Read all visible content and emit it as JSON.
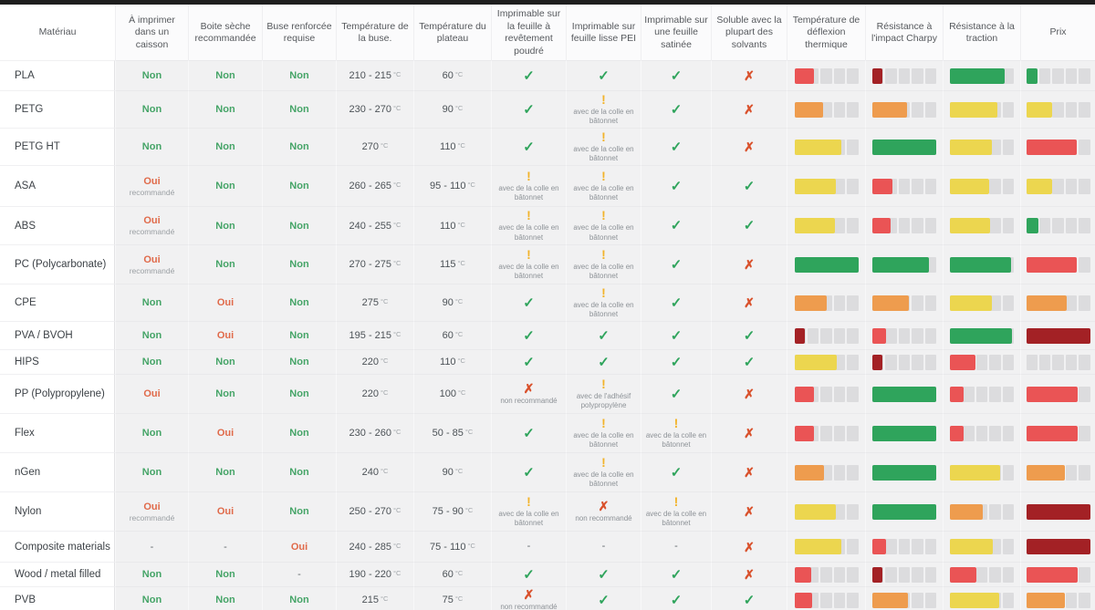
{
  "colors": {
    "bar_green": "#2fa45c",
    "bar_yellow": "#ecd64f",
    "bar_orange": "#ee9c4e",
    "bar_red": "#ea5455",
    "bar_darkred": "#a32125",
    "bar_empty": "#dcdcde",
    "check_icon": "#2fa45c",
    "cross_icon": "#d9512c",
    "warning_icon": "#f2b32a",
    "text_no": "#45a467",
    "text_yes": "#e06a4a",
    "topbar": "#1e1e1e"
  },
  "table": {
    "units": {
      "celsius": "°C"
    },
    "columns": [
      "Matériau",
      "À imprimer dans un caisson",
      "Boite sèche recommandée",
      "Buse renforcée requise",
      "Température de la buse.",
      "Température du plateau",
      "Imprimable sur la feuille à revêtement poudré",
      "Imprimable sur feuille lisse PEI",
      "Imprimable sur une feuille satinée",
      "Soluble avec la plupart des solvants",
      "Température de déflexion thermique",
      "Résistance à l'impact Charpy",
      "Résistance à la traction",
      "Prix"
    ],
    "rows": [
      {
        "name": "PLA",
        "enclosure": {
          "t": "Non",
          "c": "no"
        },
        "drybox": {
          "t": "Non",
          "c": "no"
        },
        "hard_nozzle": {
          "t": "Non",
          "c": "no"
        },
        "nozzle_temp": "210 - 215",
        "bed_temp": "60",
        "powder_sheet": {
          "icon": "check"
        },
        "pei_sheet": {
          "icon": "check"
        },
        "satin_sheet": {
          "icon": "check"
        },
        "soluble": {
          "icon": "cross"
        },
        "hdt": {
          "color": "red",
          "pct": 30
        },
        "charpy": {
          "color": "darkred",
          "pct": 15
        },
        "tensile": {
          "color": "green",
          "pct": 85
        },
        "price": {
          "color": "green",
          "pct": 18
        }
      },
      {
        "name": "PETG",
        "enclosure": {
          "t": "Non",
          "c": "no"
        },
        "drybox": {
          "t": "Non",
          "c": "no"
        },
        "hard_nozzle": {
          "t": "Non",
          "c": "no"
        },
        "nozzle_temp": "230 - 270",
        "bed_temp": "90",
        "powder_sheet": {
          "icon": "check"
        },
        "pei_sheet": {
          "icon": "warning",
          "note": "avec de la colle en bâtonnet"
        },
        "satin_sheet": {
          "icon": "check"
        },
        "soluble": {
          "icon": "cross"
        },
        "hdt": {
          "color": "orange",
          "pct": 45
        },
        "charpy": {
          "color": "orange",
          "pct": 54
        },
        "tensile": {
          "color": "yellow",
          "pct": 74
        },
        "price": {
          "color": "yellow",
          "pct": 40
        }
      },
      {
        "name": "PETG HT",
        "enclosure": {
          "t": "Non",
          "c": "no"
        },
        "drybox": {
          "t": "Non",
          "c": "no"
        },
        "hard_nozzle": {
          "t": "Non",
          "c": "no"
        },
        "nozzle_temp": "270",
        "bed_temp": "110",
        "powder_sheet": {
          "icon": "check"
        },
        "pei_sheet": {
          "icon": "warning",
          "note": "avec de la colle en bâtonnet"
        },
        "satin_sheet": {
          "icon": "check"
        },
        "soluble": {
          "icon": "cross"
        },
        "hdt": {
          "color": "yellow",
          "pct": 74
        },
        "charpy": {
          "color": "green",
          "pct": 100
        },
        "tensile": {
          "color": "yellow",
          "pct": 66
        },
        "price": {
          "color": "red",
          "pct": 79
        }
      },
      {
        "name": "ASA",
        "enclosure": {
          "t": "Oui",
          "c": "yes",
          "sub": "recommandé"
        },
        "drybox": {
          "t": "Non",
          "c": "no"
        },
        "hard_nozzle": {
          "t": "Non",
          "c": "no"
        },
        "nozzle_temp": "260 - 265",
        "bed_temp": "95 - 110",
        "powder_sheet": {
          "icon": "warning",
          "note": "avec de la colle en bâtonnet"
        },
        "pei_sheet": {
          "icon": "warning",
          "note": "avec de la colle en bâtonnet"
        },
        "satin_sheet": {
          "icon": "check"
        },
        "soluble": {
          "icon": "check"
        },
        "hdt": {
          "color": "yellow",
          "pct": 65
        },
        "charpy": {
          "color": "red",
          "pct": 31
        },
        "tensile": {
          "color": "yellow",
          "pct": 62
        },
        "price": {
          "color": "yellow",
          "pct": 40
        }
      },
      {
        "name": "ABS",
        "enclosure": {
          "t": "Oui",
          "c": "yes",
          "sub": "recommandé"
        },
        "drybox": {
          "t": "Non",
          "c": "no"
        },
        "hard_nozzle": {
          "t": "Non",
          "c": "no"
        },
        "nozzle_temp": "240 - 255",
        "bed_temp": "110",
        "powder_sheet": {
          "icon": "warning",
          "note": "avec de la colle en bâtonnet"
        },
        "pei_sheet": {
          "icon": "warning",
          "note": "avec de la colle en bâtonnet"
        },
        "satin_sheet": {
          "icon": "check"
        },
        "soluble": {
          "icon": "check"
        },
        "hdt": {
          "color": "yellow",
          "pct": 64
        },
        "charpy": {
          "color": "red",
          "pct": 29
        },
        "tensile": {
          "color": "yellow",
          "pct": 63
        },
        "price": {
          "color": "green",
          "pct": 19
        }
      },
      {
        "name": "PC (Polycarbonate)",
        "enclosure": {
          "t": "Oui",
          "c": "yes",
          "sub": "recommandé"
        },
        "drybox": {
          "t": "Non",
          "c": "no"
        },
        "hard_nozzle": {
          "t": "Non",
          "c": "no"
        },
        "nozzle_temp": "270 - 275",
        "bed_temp": "115",
        "powder_sheet": {
          "icon": "warning",
          "note": "avec de la colle en bâtonnet"
        },
        "pei_sheet": {
          "icon": "warning",
          "note": "avec de la colle en bâtonnet"
        },
        "satin_sheet": {
          "icon": "check"
        },
        "soluble": {
          "icon": "cross"
        },
        "hdt": {
          "color": "green",
          "pct": 100
        },
        "charpy": {
          "color": "green",
          "pct": 88
        },
        "tensile": {
          "color": "green",
          "pct": 95
        },
        "price": {
          "color": "red",
          "pct": 79
        }
      },
      {
        "name": "CPE",
        "enclosure": {
          "t": "Non",
          "c": "no"
        },
        "drybox": {
          "t": "Oui",
          "c": "yes"
        },
        "hard_nozzle": {
          "t": "Non",
          "c": "no"
        },
        "nozzle_temp": "275",
        "bed_temp": "90",
        "powder_sheet": {
          "icon": "check"
        },
        "pei_sheet": {
          "icon": "warning",
          "note": "avec de la colle en bâtonnet"
        },
        "satin_sheet": {
          "icon": "check"
        },
        "soluble": {
          "icon": "cross"
        },
        "hdt": {
          "color": "orange",
          "pct": 51
        },
        "charpy": {
          "color": "orange",
          "pct": 57
        },
        "tensile": {
          "color": "yellow",
          "pct": 65
        },
        "price": {
          "color": "orange",
          "pct": 63
        }
      },
      {
        "name": "PVA / BVOH",
        "enclosure": {
          "t": "Non",
          "c": "no"
        },
        "drybox": {
          "t": "Oui",
          "c": "yes"
        },
        "hard_nozzle": {
          "t": "Non",
          "c": "no"
        },
        "nozzle_temp": "195 - 215",
        "bed_temp": "60",
        "powder_sheet": {
          "icon": "check"
        },
        "pei_sheet": {
          "icon": "check"
        },
        "satin_sheet": {
          "icon": "check"
        },
        "soluble": {
          "icon": "check"
        },
        "hdt": {
          "color": "darkred",
          "pct": 17
        },
        "charpy": {
          "color": "red",
          "pct": 21
        },
        "tensile": {
          "color": "green",
          "pct": 97
        },
        "price": {
          "color": "darkred",
          "pct": 100
        }
      },
      {
        "name": "HIPS",
        "enclosure": {
          "t": "Non",
          "c": "no"
        },
        "drybox": {
          "t": "Non",
          "c": "no"
        },
        "hard_nozzle": {
          "t": "Non",
          "c": "no"
        },
        "nozzle_temp": "220",
        "bed_temp": "110",
        "powder_sheet": {
          "icon": "check"
        },
        "pei_sheet": {
          "icon": "check"
        },
        "satin_sheet": {
          "icon": "check"
        },
        "soluble": {
          "icon": "check"
        },
        "hdt": {
          "color": "yellow",
          "pct": 67
        },
        "charpy": {
          "color": "darkred",
          "pct": 16
        },
        "tensile": {
          "color": "red",
          "pct": 40
        },
        "price": {
          "color": "none",
          "pct": 0
        }
      },
      {
        "name": "PP (Polypropylene)",
        "enclosure": {
          "t": "Oui",
          "c": "yes"
        },
        "drybox": {
          "t": "Non",
          "c": "no"
        },
        "hard_nozzle": {
          "t": "Non",
          "c": "no"
        },
        "nozzle_temp": "220",
        "bed_temp": "100",
        "powder_sheet": {
          "icon": "cross",
          "note": "non recommandé"
        },
        "pei_sheet": {
          "icon": "warning",
          "note": "avec de l'adhésif polypropylène"
        },
        "satin_sheet": {
          "icon": "check"
        },
        "soluble": {
          "icon": "cross"
        },
        "hdt": {
          "color": "red",
          "pct": 30
        },
        "charpy": {
          "color": "green",
          "pct": 100
        },
        "tensile": {
          "color": "red",
          "pct": 21
        },
        "price": {
          "color": "red",
          "pct": 80
        }
      },
      {
        "name": "Flex",
        "enclosure": {
          "t": "Non",
          "c": "no"
        },
        "drybox": {
          "t": "Oui",
          "c": "yes"
        },
        "hard_nozzle": {
          "t": "Non",
          "c": "no"
        },
        "nozzle_temp": "230 - 260",
        "bed_temp": "50 - 85",
        "powder_sheet": {
          "icon": "check"
        },
        "pei_sheet": {
          "icon": "warning",
          "note": "avec de la colle en bâtonnet"
        },
        "satin_sheet": {
          "icon": "warning",
          "note": "avec de la colle en bâtonnet"
        },
        "soluble": {
          "icon": "cross"
        },
        "hdt": {
          "color": "red",
          "pct": 30
        },
        "charpy": {
          "color": "green",
          "pct": 100
        },
        "tensile": {
          "color": "red",
          "pct": 21
        },
        "price": {
          "color": "red",
          "pct": 80
        }
      },
      {
        "name": "nGen",
        "enclosure": {
          "t": "Non",
          "c": "no"
        },
        "drybox": {
          "t": "Non",
          "c": "no"
        },
        "hard_nozzle": {
          "t": "Non",
          "c": "no"
        },
        "nozzle_temp": "240",
        "bed_temp": "90",
        "powder_sheet": {
          "icon": "check"
        },
        "pei_sheet": {
          "icon": "warning",
          "note": "avec de la colle en bâtonnet"
        },
        "satin_sheet": {
          "icon": "check"
        },
        "soluble": {
          "icon": "cross"
        },
        "hdt": {
          "color": "orange",
          "pct": 46
        },
        "charpy": {
          "color": "green",
          "pct": 100
        },
        "tensile": {
          "color": "yellow",
          "pct": 79
        },
        "price": {
          "color": "orange",
          "pct": 60
        }
      },
      {
        "name": "Nylon",
        "enclosure": {
          "t": "Oui",
          "c": "yes",
          "sub": "recommandé"
        },
        "drybox": {
          "t": "Oui",
          "c": "yes"
        },
        "hard_nozzle": {
          "t": "Non",
          "c": "no"
        },
        "nozzle_temp": "250 - 270",
        "bed_temp": "75 - 90",
        "powder_sheet": {
          "icon": "warning",
          "note": "avec de la colle en bâtonnet"
        },
        "pei_sheet": {
          "icon": "cross",
          "note": "non recommandé"
        },
        "satin_sheet": {
          "icon": "warning",
          "note": "avec de la colle en bâtonnet"
        },
        "soluble": {
          "icon": "cross"
        },
        "hdt": {
          "color": "yellow",
          "pct": 65
        },
        "charpy": {
          "color": "green",
          "pct": 100
        },
        "tensile": {
          "color": "orange",
          "pct": 51
        },
        "price": {
          "color": "darkred",
          "pct": 100
        }
      },
      {
        "name": "Composite materials",
        "enclosure": {
          "t": "-",
          "c": "dash"
        },
        "drybox": {
          "t": "-",
          "c": "dash"
        },
        "hard_nozzle": {
          "t": "Oui",
          "c": "yes"
        },
        "nozzle_temp": "240 - 285",
        "bed_temp": "75 - 110",
        "powder_sheet": {
          "icon": "dash"
        },
        "pei_sheet": {
          "icon": "dash"
        },
        "satin_sheet": {
          "icon": "dash"
        },
        "soluble": {
          "icon": "cross"
        },
        "hdt": {
          "color": "yellow",
          "pct": 73
        },
        "charpy": {
          "color": "red",
          "pct": 21
        },
        "tensile": {
          "color": "yellow",
          "pct": 67
        },
        "price": {
          "color": "darkred",
          "pct": 100
        }
      },
      {
        "name": "Wood / metal filled",
        "enclosure": {
          "t": "Non",
          "c": "no"
        },
        "drybox": {
          "t": "Non",
          "c": "no"
        },
        "hard_nozzle": {
          "t": "-",
          "c": "dash"
        },
        "nozzle_temp": "190 - 220",
        "bed_temp": "60",
        "powder_sheet": {
          "icon": "check"
        },
        "pei_sheet": {
          "icon": "check"
        },
        "satin_sheet": {
          "icon": "check"
        },
        "soluble": {
          "icon": "cross"
        },
        "hdt": {
          "color": "red",
          "pct": 26
        },
        "charpy": {
          "color": "darkred",
          "pct": 15
        },
        "tensile": {
          "color": "red",
          "pct": 41
        },
        "price": {
          "color": "red",
          "pct": 80
        }
      },
      {
        "name": "PVB",
        "enclosure": {
          "t": "Non",
          "c": "no"
        },
        "drybox": {
          "t": "Non",
          "c": "no"
        },
        "hard_nozzle": {
          "t": "Non",
          "c": "no"
        },
        "nozzle_temp": "215",
        "bed_temp": "75",
        "powder_sheet": {
          "icon": "cross",
          "note": "non recommandé"
        },
        "pei_sheet": {
          "icon": "check"
        },
        "satin_sheet": {
          "icon": "check"
        },
        "soluble": {
          "icon": "check"
        },
        "hdt": {
          "color": "red",
          "pct": 28
        },
        "charpy": {
          "color": "orange",
          "pct": 55
        },
        "tensile": {
          "color": "yellow",
          "pct": 77
        },
        "price": {
          "color": "orange",
          "pct": 60
        }
      }
    ]
  }
}
